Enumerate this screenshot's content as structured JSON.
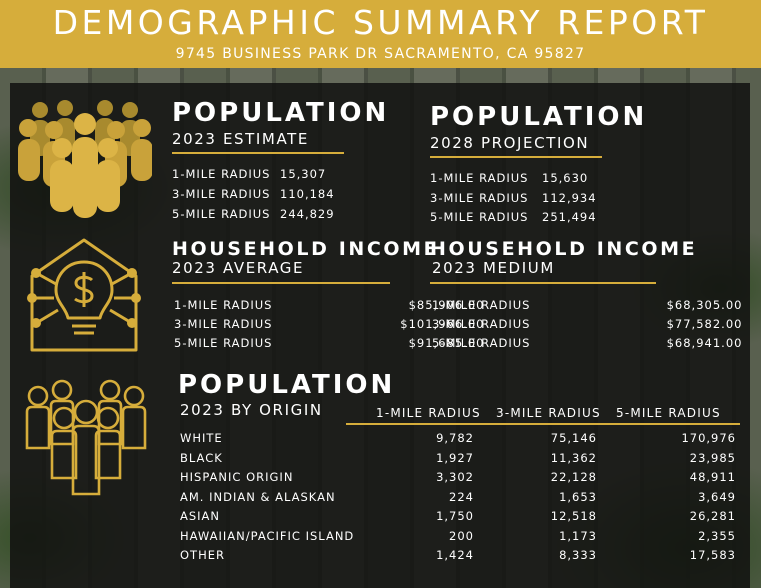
{
  "header": {
    "title": "DEMOGRAPHIC SUMMARY REPORT",
    "address": "9745 BUSINESS PARK DR SACRAMENTO, CA 95827"
  },
  "population_2023": {
    "title": "POPULATION",
    "subtitle": "2023 ESTIMATE",
    "rows": [
      {
        "label": "1-MILE RADIUS",
        "value": "15,307"
      },
      {
        "label": "3-MILE RADIUS",
        "value": "110,184"
      },
      {
        "label": "5-MILE RADIUS",
        "value": "244,829"
      }
    ]
  },
  "population_2028": {
    "title": "POPULATION",
    "subtitle": "2028 PROJECTION",
    "rows": [
      {
        "label": "1-MILE RADIUS",
        "value": "15,630"
      },
      {
        "label": "3-MILE RADIUS",
        "value": "112,934"
      },
      {
        "label": "5-MILE RADIUS",
        "value": "251,494"
      }
    ]
  },
  "income_average": {
    "title": "HOUSEHOLD INCOME",
    "subtitle": "2023 AVERAGE",
    "rows": [
      {
        "label": "1-MILE RADIUS",
        "value": "$85,906.00"
      },
      {
        "label": "3-MILE RADIUS",
        "value": "$101,966.00"
      },
      {
        "label": "5-MILE RADIUS",
        "value": "$91,685.00"
      }
    ]
  },
  "income_medium": {
    "title": "HOUSEHOLD INCOME",
    "subtitle": "2023 MEDIUM",
    "rows": [
      {
        "label": "1-MILE RADIUS",
        "value": "$68,305.00"
      },
      {
        "label": "3-MILE RADIUS",
        "value": "$77,582.00"
      },
      {
        "label": "5-MILE RADIUS",
        "value": "$68,941.00"
      }
    ]
  },
  "origin": {
    "title": "POPULATION",
    "subtitle": "2023 BY ORIGIN",
    "columns": [
      "1-MILE RADIUS",
      "3-MILE RADIUS",
      "5-MILE RADIUS"
    ],
    "rows": [
      {
        "label": "WHITE",
        "values": [
          "9,782",
          "75,146",
          "170,976"
        ]
      },
      {
        "label": "BLACK",
        "values": [
          "1,927",
          "11,362",
          "23,985"
        ]
      },
      {
        "label": "HISPANIC ORIGIN",
        "values": [
          "3,302",
          "22,128",
          "48,911"
        ]
      },
      {
        "label": "AM. INDIAN & ALASKAN",
        "values": [
          "224",
          "1,653",
          "3,649"
        ]
      },
      {
        "label": "ASIAN",
        "values": [
          "1,750",
          "12,518",
          "26,281"
        ]
      },
      {
        "label": "HAWAIIAN/PACIFIC ISLAND",
        "values": [
          "200",
          "1,173",
          "2,355"
        ]
      },
      {
        "label": "OTHER",
        "values": [
          "1,424",
          "8,333",
          "17,583"
        ]
      }
    ]
  },
  "colors": {
    "accent": "#d6ad3b",
    "panel": "#121210"
  },
  "icons": [
    "crowd-icon",
    "house-lightbulb-dollar-icon",
    "people-group-outline-icon"
  ]
}
